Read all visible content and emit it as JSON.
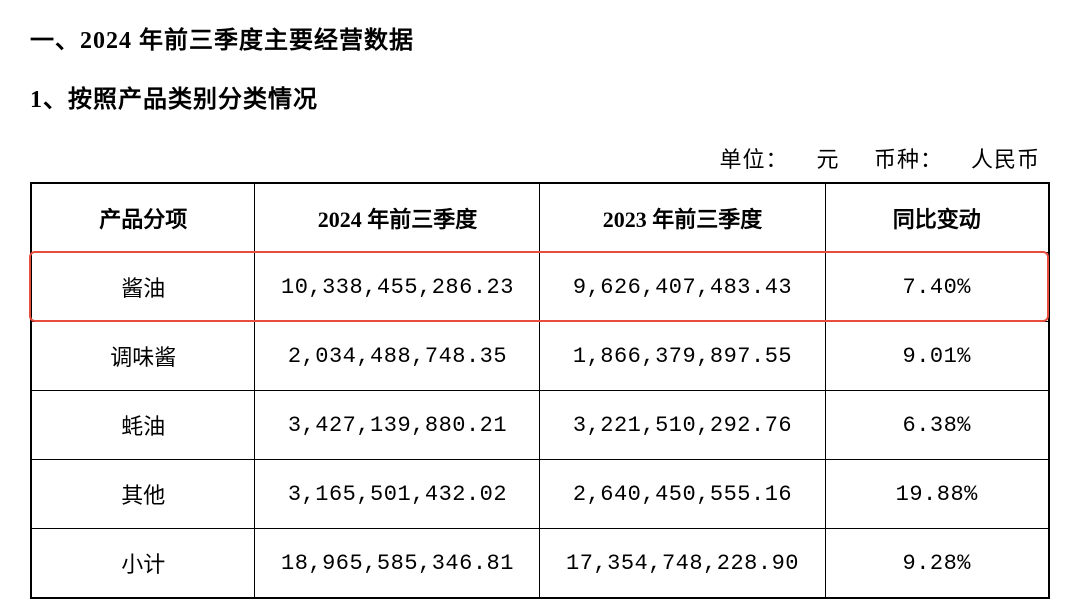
{
  "headings": {
    "section_title": "一、2024 年前三季度主要经营数据",
    "sub_title": "1、按照产品类别分类情况"
  },
  "unit_info": {
    "unit_label": "单位：",
    "unit_value": "元",
    "currency_label": "币种：",
    "currency_value": "人民币"
  },
  "table": {
    "columns": [
      "产品分项",
      "2024 年前三季度",
      "2023 年前三季度",
      "同比变动"
    ],
    "rows": [
      {
        "product": "酱油",
        "y2024": "10,338,455,286.23",
        "y2023": "9,626,407,483.43",
        "change": "7.40%",
        "highlight": true
      },
      {
        "product": "调味酱",
        "y2024": "2,034,488,748.35",
        "y2023": "1,866,379,897.55",
        "change": "9.01%",
        "highlight": false
      },
      {
        "product": "蚝油",
        "y2024": "3,427,139,880.21",
        "y2023": "3,221,510,292.76",
        "change": "6.38%",
        "highlight": false
      },
      {
        "product": "其他",
        "y2024": "3,165,501,432.02",
        "y2023": "2,640,450,555.16",
        "change": "19.88%",
        "highlight": false
      },
      {
        "product": "小计",
        "y2024": "18,965,585,346.81",
        "y2023": "17,354,748,228.90",
        "change": "9.28%",
        "highlight": false
      }
    ],
    "highlight_color": "#e74c3c",
    "border_color": "#000000"
  },
  "style": {
    "background_color": "#ffffff",
    "text_color": "#000000",
    "heading_fontsize": 24,
    "cell_fontsize": 22
  }
}
